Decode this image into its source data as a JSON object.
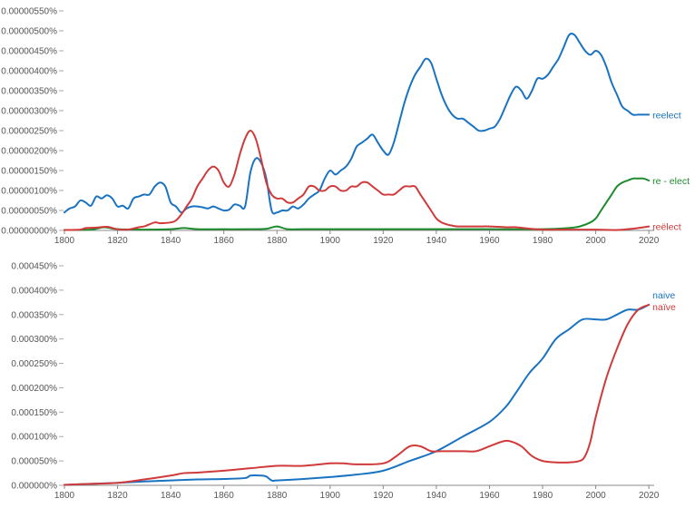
{
  "chart_data": [
    {
      "type": "line",
      "title": "",
      "xlabel": "",
      "ylabel": "",
      "xlim": [
        1800,
        2022
      ],
      "ylim": [
        0,
        5.5e-06
      ],
      "xticks": [
        1800,
        1820,
        1840,
        1860,
        1880,
        1900,
        1920,
        1940,
        1960,
        1980,
        2000,
        2020
      ],
      "xtick_labels": [
        "1800",
        "1820",
        "1840",
        "1860",
        "1880",
        "1900",
        "1920",
        "1940",
        "1960",
        "1980",
        "2000",
        "2020"
      ],
      "yticks": [
        0,
        5e-07,
        1e-06,
        1.5e-06,
        2e-06,
        2.5e-06,
        3e-06,
        3.5e-06,
        4e-06,
        4.5e-06,
        5e-06,
        5.5e-06
      ],
      "ytick_labels": [
        "0.00000000%",
        "0.00000050%",
        "0.00000100%",
        "0.00000150%",
        "0.00000200%",
        "0.00000250%",
        "0.00000300%",
        "0.00000350%",
        "0.00000400%",
        "0.00000450%",
        "0.00000500%",
        "0.00000550%"
      ],
      "legend": "inline-right",
      "series": [
        {
          "name": "reelect",
          "color": "#1a73c1",
          "x": [
            1800,
            1802,
            1804,
            1806,
            1808,
            1810,
            1812,
            1814,
            1816,
            1818,
            1820,
            1822,
            1824,
            1826,
            1828,
            1830,
            1832,
            1834,
            1836,
            1838,
            1840,
            1842,
            1844,
            1846,
            1848,
            1850,
            1852,
            1854,
            1856,
            1858,
            1860,
            1862,
            1864,
            1866,
            1868,
            1870,
            1872,
            1874,
            1876,
            1878,
            1880,
            1882,
            1884,
            1886,
            1888,
            1890,
            1892,
            1894,
            1896,
            1898,
            1900,
            1902,
            1904,
            1906,
            1908,
            1910,
            1912,
            1914,
            1916,
            1918,
            1920,
            1922,
            1924,
            1926,
            1928,
            1930,
            1932,
            1934,
            1936,
            1938,
            1940,
            1942,
            1944,
            1946,
            1948,
            1950,
            1952,
            1954,
            1956,
            1958,
            1960,
            1962,
            1964,
            1966,
            1968,
            1970,
            1972,
            1974,
            1976,
            1978,
            1980,
            1982,
            1984,
            1986,
            1988,
            1990,
            1992,
            1994,
            1996,
            1998,
            2000,
            2002,
            2004,
            2006,
            2008,
            2010,
            2012,
            2014,
            2016,
            2018,
            2020
          ],
          "y": [
            4.5e-07,
            5.5e-07,
            6e-07,
            7.5e-07,
            7e-07,
            6.2e-07,
            8.5e-07,
            8e-07,
            8.8e-07,
            8e-07,
            6e-07,
            6.2e-07,
            5.5e-07,
            8e-07,
            8.5e-07,
            9e-07,
            9e-07,
            1.1e-06,
            1.2e-06,
            1.1e-06,
            7e-07,
            6e-07,
            4.5e-07,
            5.5e-07,
            6e-07,
            6e-07,
            5.8e-07,
            5.5e-07,
            6e-07,
            5.5e-07,
            5e-07,
            5.2e-07,
            6.5e-07,
            6.2e-07,
            6e-07,
            1.45e-06,
            1.8e-06,
            1.7e-06,
            1.3e-06,
            5e-07,
            4.5e-07,
            5e-07,
            5e-07,
            6e-07,
            5.5e-07,
            6.5e-07,
            8e-07,
            9e-07,
            1e-06,
            1.3e-06,
            1.5e-06,
            1.4e-06,
            1.5e-06,
            1.6e-06,
            1.8e-06,
            2.1e-06,
            2.2e-06,
            2.3e-06,
            2.4e-06,
            2.2e-06,
            2e-06,
            1.9e-06,
            2.2e-06,
            2.7e-06,
            3.2e-06,
            3.6e-06,
            3.9e-06,
            4.1e-06,
            4.3e-06,
            4.2e-06,
            3.8e-06,
            3.4e-06,
            3.1e-06,
            2.9e-06,
            2.8e-06,
            2.8e-06,
            2.7e-06,
            2.6e-06,
            2.5e-06,
            2.5e-06,
            2.55e-06,
            2.6e-06,
            2.8e-06,
            3.1e-06,
            3.4e-06,
            3.6e-06,
            3.5e-06,
            3.3e-06,
            3.5e-06,
            3.8e-06,
            3.8e-06,
            3.9e-06,
            4.1e-06,
            4.3e-06,
            4.6e-06,
            4.9e-06,
            4.9e-06,
            4.7e-06,
            4.5e-06,
            4.4e-06,
            4.5e-06,
            4.4e-06,
            4.1e-06,
            3.7e-06,
            3.4e-06,
            3.1e-06,
            3e-06,
            2.9e-06,
            2.9e-06,
            2.9e-06,
            2.9e-06
          ],
          "label": "reelect"
        },
        {
          "name": "re - elect",
          "color": "#1e8a2e",
          "x": [
            1800,
            1810,
            1815,
            1820,
            1830,
            1840,
            1845,
            1850,
            1860,
            1870,
            1876,
            1880,
            1884,
            1890,
            1900,
            1920,
            1940,
            1960,
            1980,
            1990,
            1994,
            1998,
            2000,
            2002,
            2004,
            2006,
            2008,
            2010,
            2012,
            2014,
            2016,
            2018,
            2020
          ],
          "y": [
            1e-08,
            2e-08,
            8e-08,
            3e-08,
            2e-08,
            3e-08,
            6e-08,
            3e-08,
            3e-08,
            3e-08,
            4e-08,
            1e-07,
            3e-08,
            3e-08,
            3e-08,
            3e-08,
            3e-08,
            3e-08,
            3e-08,
            6e-08,
            1e-07,
            2e-07,
            3e-07,
            5e-07,
            7e-07,
            9e-07,
            1.1e-06,
            1.2e-06,
            1.25e-06,
            1.3e-06,
            1.3e-06,
            1.3e-06,
            1.25e-06
          ],
          "label": "re - elect"
        },
        {
          "name": "reëlect",
          "color": "#d03a3a",
          "x": [
            1800,
            1806,
            1808,
            1812,
            1816,
            1820,
            1824,
            1828,
            1830,
            1834,
            1836,
            1840,
            1842,
            1844,
            1846,
            1848,
            1850,
            1852,
            1854,
            1856,
            1858,
            1860,
            1862,
            1864,
            1866,
            1868,
            1870,
            1872,
            1874,
            1876,
            1878,
            1880,
            1882,
            1884,
            1886,
            1888,
            1890,
            1892,
            1894,
            1896,
            1898,
            1900,
            1902,
            1904,
            1906,
            1908,
            1910,
            1912,
            1914,
            1916,
            1918,
            1920,
            1922,
            1924,
            1926,
            1928,
            1930,
            1932,
            1934,
            1936,
            1938,
            1940,
            1942,
            1944,
            1946,
            1948,
            1950,
            1952,
            1956,
            1960,
            1966,
            1970,
            1974,
            1980,
            1990,
            2000,
            2008,
            2012,
            2016,
            2020
          ],
          "y": [
            1e-08,
            2e-08,
            6e-08,
            7e-08,
            9e-08,
            3e-08,
            2e-08,
            8e-08,
            1e-07,
            2e-07,
            1.8e-07,
            2e-07,
            2.5e-07,
            4e-07,
            6e-07,
            8e-07,
            1.1e-06,
            1.3e-06,
            1.5e-06,
            1.6e-06,
            1.5e-06,
            1.2e-06,
            1.1e-06,
            1.4e-06,
            1.9e-06,
            2.3e-06,
            2.5e-06,
            2.3e-06,
            1.8e-06,
            1.2e-06,
            9e-07,
            8e-07,
            8e-07,
            7e-07,
            7e-07,
            8e-07,
            9e-07,
            1.1e-06,
            1.1e-06,
            1e-06,
            1e-06,
            1.1e-06,
            1.1e-06,
            1e-06,
            1e-06,
            1.1e-06,
            1.1e-06,
            1.2e-06,
            1.2e-06,
            1.1e-06,
            1e-06,
            9e-07,
            9e-07,
            9e-07,
            1e-06,
            1.1e-06,
            1.1e-06,
            1.1e-06,
            9e-07,
            7e-07,
            5e-07,
            3e-07,
            2e-07,
            1.5e-07,
            1.2e-07,
            1e-07,
            1e-07,
            1e-07,
            1e-07,
            1e-07,
            8e-08,
            8e-08,
            5e-08,
            2e-08,
            2e-08,
            2e-08,
            1e-08,
            3e-08,
            6e-08,
            1e-07
          ],
          "label": "reëlect"
        }
      ]
    },
    {
      "type": "line",
      "title": "",
      "xlabel": "",
      "ylabel": "",
      "xlim": [
        1800,
        2022
      ],
      "ylim": [
        0,
        4.5e-06
      ],
      "xticks": [
        1800,
        1820,
        1840,
        1860,
        1880,
        1900,
        1920,
        1940,
        1960,
        1980,
        2000,
        2020
      ],
      "xtick_labels": [
        "1800",
        "1820",
        "1840",
        "1860",
        "1880",
        "1900",
        "1920",
        "1940",
        "1960",
        "1980",
        "2000",
        "2020"
      ],
      "yticks": [
        0,
        5e-07,
        1e-06,
        1.5e-06,
        2e-06,
        2.5e-06,
        3e-06,
        3.5e-06,
        4e-06,
        4.5e-06
      ],
      "ytick_labels": [
        "0.000000%",
        "0.000050%",
        "0.000100%",
        "0.000150%",
        "0.000200%",
        "0.000250%",
        "0.000300%",
        "0.000350%",
        "0.000400%",
        "0.000450%"
      ],
      "legend": "inline-right",
      "series": [
        {
          "name": "naive",
          "color": "#1a73c1",
          "x": [
            1800,
            1810,
            1820,
            1830,
            1840,
            1850,
            1860,
            1868,
            1870,
            1874,
            1876,
            1878,
            1880,
            1890,
            1900,
            1910,
            1920,
            1930,
            1940,
            1950,
            1960,
            1966,
            1970,
            1975,
            1980,
            1985,
            1990,
            1995,
            2000,
            2004,
            2008,
            2012,
            2016,
            2020
          ],
          "y": [
            1e-08,
            3e-08,
            5e-08,
            8e-08,
            1e-07,
            1.2e-07,
            1.3e-07,
            1.5e-07,
            2e-07,
            2e-07,
            1.8e-07,
            1e-07,
            1e-07,
            1.3e-07,
            1.7e-07,
            2.2e-07,
            3e-07,
            5e-07,
            7e-07,
            1e-06,
            1.3e-06,
            1.6e-06,
            1.9e-06,
            2.3e-06,
            2.6e-06,
            3e-06,
            3.2e-06,
            3.4e-06,
            3.4e-06,
            3.4e-06,
            3.5e-06,
            3.6e-06,
            3.6e-06,
            3.7e-06
          ],
          "label": "naive"
        },
        {
          "name": "naïve",
          "color": "#d03a3a",
          "x": [
            1800,
            1810,
            1820,
            1830,
            1840,
            1845,
            1850,
            1860,
            1870,
            1880,
            1890,
            1900,
            1905,
            1910,
            1920,
            1925,
            1930,
            1934,
            1938,
            1942,
            1946,
            1950,
            1955,
            1960,
            1965,
            1968,
            1972,
            1976,
            1980,
            1985,
            1990,
            1994,
            1996,
            1998,
            2000,
            2004,
            2008,
            2012,
            2016,
            2020
          ],
          "y": [
            1e-08,
            3e-08,
            5e-08,
            1.2e-07,
            2e-07,
            2.5e-07,
            2.6e-07,
            3e-07,
            3.5e-07,
            4e-07,
            4e-07,
            4.5e-07,
            4.5e-07,
            4.3e-07,
            4.5e-07,
            6e-07,
            8e-07,
            8e-07,
            7e-07,
            7e-07,
            7e-07,
            7e-07,
            7e-07,
            8e-07,
            9e-07,
            9e-07,
            8e-07,
            6e-07,
            5e-07,
            4.7e-07,
            4.7e-07,
            5e-07,
            6e-07,
            9e-07,
            1.4e-06,
            2.2e-06,
            2.8e-06,
            3.3e-06,
            3.6e-06,
            3.7e-06
          ],
          "label": "naïve"
        }
      ]
    }
  ]
}
